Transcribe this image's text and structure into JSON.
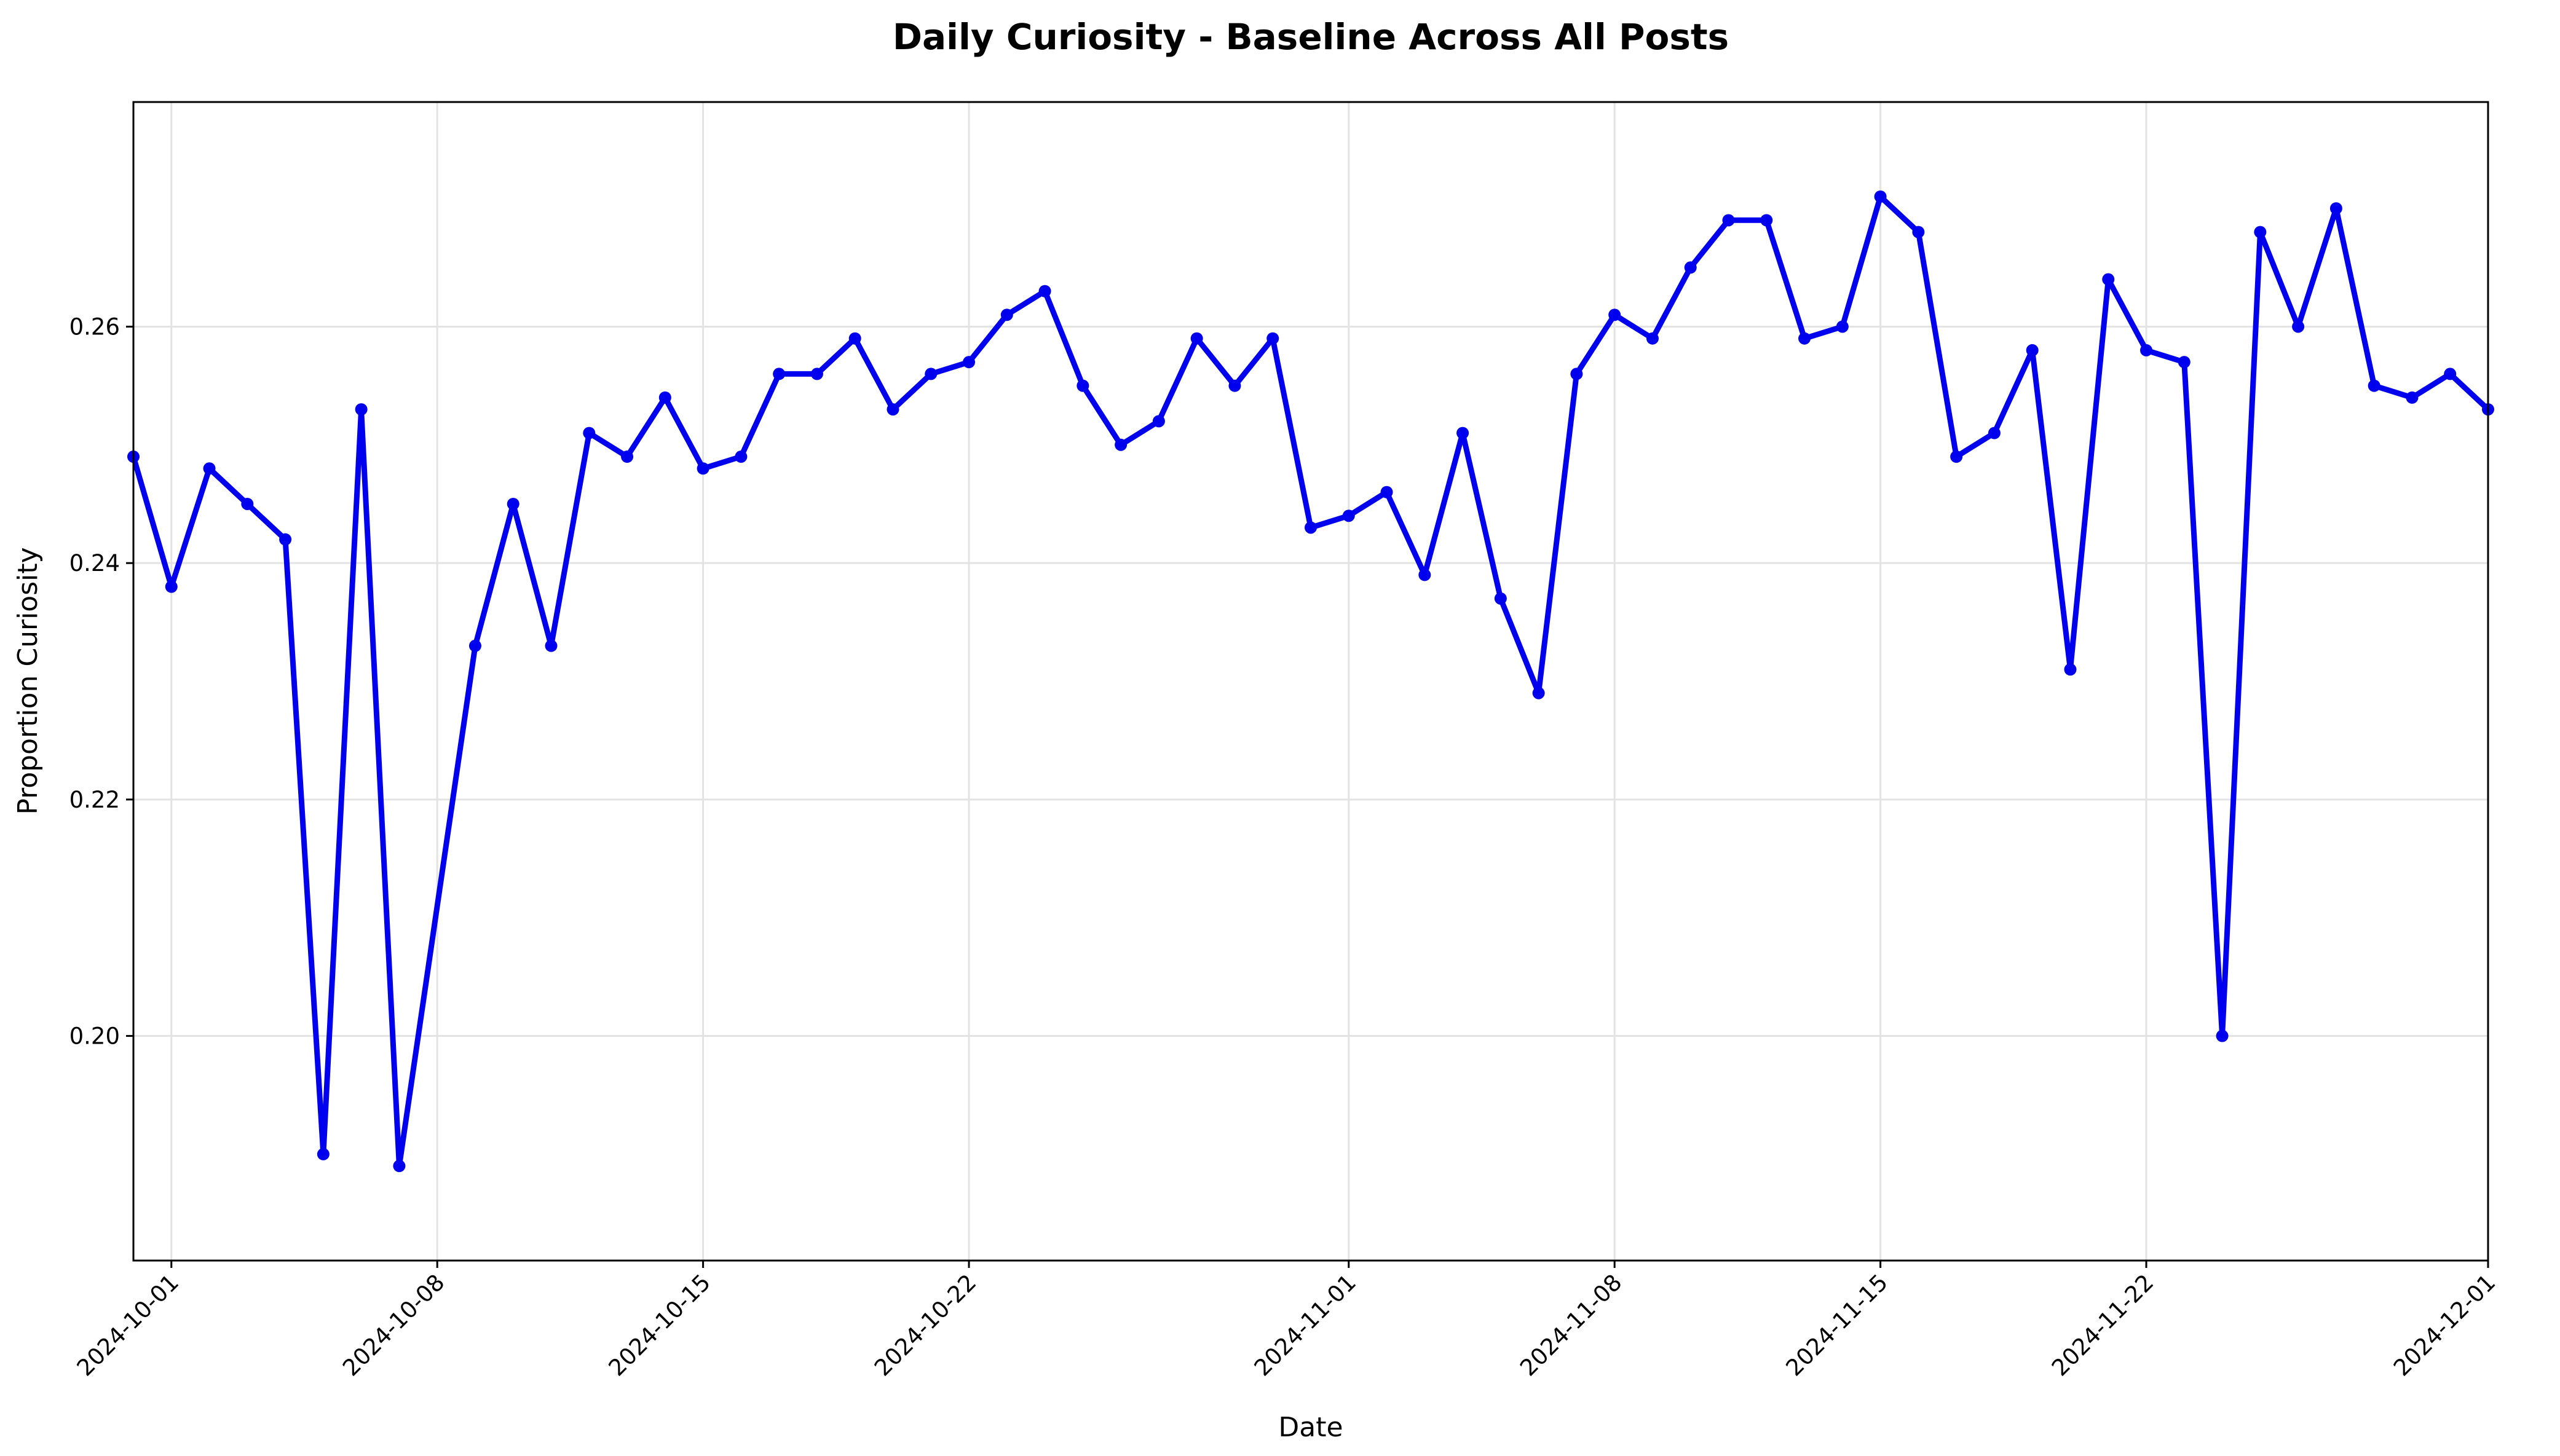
{
  "chart_data": {
    "type": "line",
    "title": "Daily Curiosity - Baseline Across All Posts",
    "xlabel": "Date",
    "ylabel": "Proportion Curiosity",
    "xlim": [
      "2024-09-30",
      "2024-12-01"
    ],
    "ylim": [
      0.181,
      0.279
    ],
    "grid": true,
    "color": "#0000ee",
    "x_ticks": [
      "2024-10-01",
      "2024-10-08",
      "2024-10-15",
      "2024-10-22",
      "2024-11-01",
      "2024-11-08",
      "2024-11-15",
      "2024-11-22",
      "2024-12-01"
    ],
    "y_ticks": [
      "0.20",
      "0.22",
      "0.24",
      "0.26"
    ],
    "series": [
      {
        "x": [
          "2024-09-30",
          "2024-10-01",
          "2024-10-02",
          "2024-10-03",
          "2024-10-04",
          "2024-10-05",
          "2024-10-06",
          "2024-10-07",
          "2024-10-09",
          "2024-10-10",
          "2024-10-11",
          "2024-10-12",
          "2024-10-13",
          "2024-10-14",
          "2024-10-15",
          "2024-10-16",
          "2024-10-17",
          "2024-10-18",
          "2024-10-19",
          "2024-10-20",
          "2024-10-21",
          "2024-10-22",
          "2024-10-23",
          "2024-10-24",
          "2024-10-25",
          "2024-10-26",
          "2024-10-27",
          "2024-10-28",
          "2024-10-29",
          "2024-10-30",
          "2024-10-31",
          "2024-11-01",
          "2024-11-02",
          "2024-11-03",
          "2024-11-04",
          "2024-11-05",
          "2024-11-06",
          "2024-11-07",
          "2024-11-08",
          "2024-11-09",
          "2024-11-10",
          "2024-11-11",
          "2024-11-12",
          "2024-11-13",
          "2024-11-14",
          "2024-11-15",
          "2024-11-16",
          "2024-11-17",
          "2024-11-18",
          "2024-11-19",
          "2024-11-20",
          "2024-11-21",
          "2024-11-22",
          "2024-11-23",
          "2024-11-24",
          "2024-11-25",
          "2024-11-26",
          "2024-11-27",
          "2024-11-28",
          "2024-11-29",
          "2024-11-30",
          "2024-12-01"
        ],
        "values": [
          0.249,
          0.238,
          0.248,
          0.245,
          0.242,
          0.19,
          0.253,
          0.189,
          0.233,
          0.245,
          0.233,
          0.251,
          0.249,
          0.254,
          0.248,
          0.249,
          0.256,
          0.256,
          0.259,
          0.253,
          0.256,
          0.257,
          0.261,
          0.263,
          0.255,
          0.25,
          0.252,
          0.259,
          0.255,
          0.259,
          0.243,
          0.244,
          0.246,
          0.239,
          0.251,
          0.237,
          0.229,
          0.256,
          0.261,
          0.259,
          0.265,
          0.269,
          0.269,
          0.259,
          0.26,
          0.271,
          0.268,
          0.249,
          0.251,
          0.258,
          0.231,
          0.264,
          0.258,
          0.257,
          0.2,
          0.268,
          0.26,
          0.27,
          0.255,
          0.254,
          0.256,
          0.253
        ]
      }
    ]
  }
}
